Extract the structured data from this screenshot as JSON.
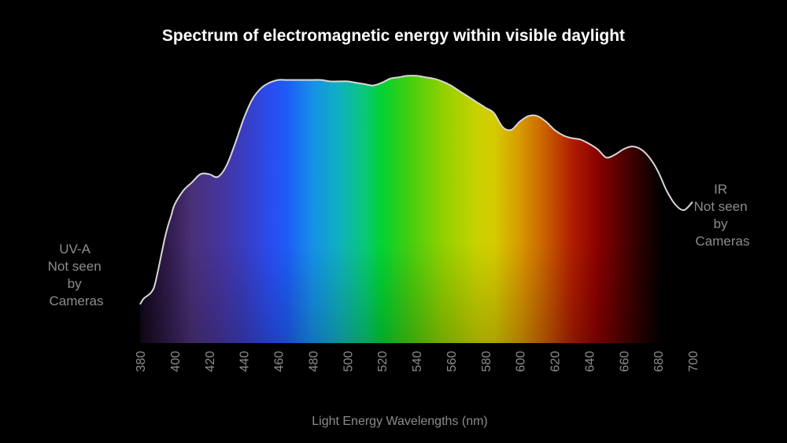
{
  "chart_data": {
    "type": "area",
    "title": "Spectrum of electromagnetic energy within visible daylight",
    "xlabel": "Light Energy Wavelengths (nm)",
    "ylabel": "",
    "xlim": [
      380,
      700
    ],
    "ticks": [
      380,
      400,
      420,
      440,
      460,
      480,
      500,
      520,
      540,
      560,
      580,
      600,
      620,
      640,
      660,
      680,
      700
    ],
    "x": [
      380,
      382,
      384,
      386,
      388,
      390,
      392,
      394,
      396,
      398,
      400,
      405,
      410,
      415,
      420,
      425,
      430,
      435,
      440,
      445,
      450,
      455,
      460,
      465,
      470,
      475,
      480,
      485,
      490,
      495,
      500,
      505,
      510,
      515,
      520,
      525,
      530,
      535,
      540,
      545,
      550,
      555,
      560,
      565,
      570,
      575,
      580,
      585,
      590,
      595,
      600,
      605,
      610,
      615,
      620,
      625,
      630,
      635,
      640,
      645,
      650,
      655,
      660,
      665,
      670,
      675,
      680,
      685,
      690,
      695,
      700
    ],
    "y": [
      0.14,
      0.16,
      0.17,
      0.18,
      0.2,
      0.25,
      0.31,
      0.37,
      0.42,
      0.46,
      0.5,
      0.55,
      0.58,
      0.61,
      0.61,
      0.6,
      0.64,
      0.72,
      0.81,
      0.88,
      0.92,
      0.94,
      0.95,
      0.95,
      0.95,
      0.95,
      0.95,
      0.95,
      0.945,
      0.945,
      0.945,
      0.94,
      0.935,
      0.93,
      0.94,
      0.955,
      0.96,
      0.965,
      0.965,
      0.96,
      0.955,
      0.945,
      0.93,
      0.91,
      0.89,
      0.87,
      0.85,
      0.83,
      0.78,
      0.77,
      0.8,
      0.82,
      0.82,
      0.8,
      0.77,
      0.75,
      0.74,
      0.735,
      0.72,
      0.7,
      0.67,
      0.68,
      0.7,
      0.71,
      0.7,
      0.67,
      0.62,
      0.55,
      0.5,
      0.48,
      0.51
    ],
    "spectrum_colors": [
      {
        "wavelength": 380,
        "color": "#100818"
      },
      {
        "wavelength": 395,
        "color": "#2e1a48"
      },
      {
        "wavelength": 410,
        "color": "#4a3078"
      },
      {
        "wavelength": 425,
        "color": "#46349a"
      },
      {
        "wavelength": 440,
        "color": "#3a3cc0"
      },
      {
        "wavelength": 455,
        "color": "#2a4cee"
      },
      {
        "wavelength": 465,
        "color": "#1e5cf6"
      },
      {
        "wavelength": 480,
        "color": "#1590e8"
      },
      {
        "wavelength": 495,
        "color": "#10b0c0"
      },
      {
        "wavelength": 510,
        "color": "#08c878"
      },
      {
        "wavelength": 520,
        "color": "#02d232"
      },
      {
        "wavelength": 535,
        "color": "#40ce10"
      },
      {
        "wavelength": 555,
        "color": "#90d000"
      },
      {
        "wavelength": 575,
        "color": "#c8d200"
      },
      {
        "wavelength": 585,
        "color": "#d4cc00"
      },
      {
        "wavelength": 600,
        "color": "#d89a00"
      },
      {
        "wavelength": 615,
        "color": "#c85e00"
      },
      {
        "wavelength": 630,
        "color": "#b01e00"
      },
      {
        "wavelength": 645,
        "color": "#8a0000"
      },
      {
        "wavelength": 660,
        "color": "#500000"
      },
      {
        "wavelength": 672,
        "color": "#220000"
      },
      {
        "wavelength": 683,
        "color": "#000000"
      }
    ],
    "fill_end_wavelength": 683,
    "curve_color": "#d8d8d8",
    "label_color": "#8c8c8c",
    "title_color": "#ffffff",
    "uv_label": [
      "UV-A",
      "Not seen",
      "by",
      "Cameras"
    ],
    "ir_label": [
      "IR",
      "Not seen",
      "by",
      "Cameras"
    ]
  }
}
